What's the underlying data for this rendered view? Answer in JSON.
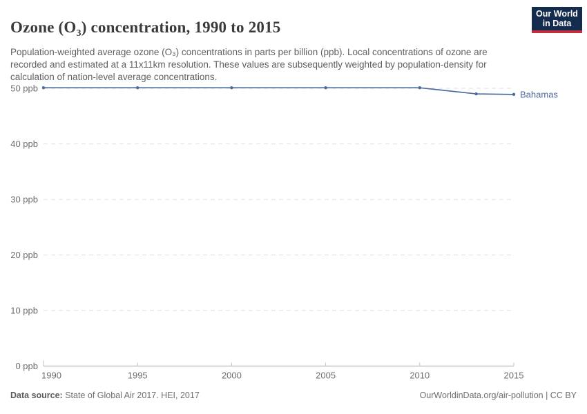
{
  "header": {
    "title": {
      "pre": "Ozone (O",
      "sub": "3",
      "post": ") concentration, 1990 to 2015"
    },
    "subtitle": "Population-weighted average ozone (O₃) concentrations in parts per billion (ppb). Local concentrations of ozone are recorded and estimated at a 11x11km resolution. These values are subsequently weighted by population-density for calculation of nation-level average concentrations.",
    "logo": {
      "line1": "Our World",
      "line2": "in Data",
      "bg": "#132c4e",
      "accent": "#c0303e"
    }
  },
  "chart_data": {
    "type": "line",
    "title": "Ozone (O₃) concentration, 1990 to 2015",
    "xlabel": "",
    "ylabel": "",
    "x": {
      "range": [
        1990,
        2015
      ],
      "ticks": [
        1990,
        1995,
        2000,
        2005,
        2010,
        2015
      ]
    },
    "y": {
      "range": [
        0,
        50
      ],
      "ticks": [
        0,
        10,
        20,
        30,
        40,
        50
      ],
      "tick_labels": [
        "0 ppb",
        "10 ppb",
        "20 ppb",
        "30 ppb",
        "40 ppb",
        "50 ppb"
      ]
    },
    "grid": "horizontal-dashed",
    "legend_position": "end-of-line-label",
    "grid_color": "#dedede",
    "axis_color": "#a3a3a3",
    "tick_color": "#c2c2c2",
    "tick_label_color": "#6e6e6e",
    "series": [
      {
        "name": "Bahamas",
        "color": "#4c6a9c",
        "points": [
          {
            "x": 1990,
            "y": 50.1
          },
          {
            "x": 1995,
            "y": 50.1
          },
          {
            "x": 2000,
            "y": 50.1
          },
          {
            "x": 2005,
            "y": 50.1
          },
          {
            "x": 2010,
            "y": 50.1
          },
          {
            "x": 2013,
            "y": 49.0
          },
          {
            "x": 2015,
            "y": 48.9
          }
        ]
      }
    ]
  },
  "footer": {
    "source_label": "Data source:",
    "source_text": " State of Global Air 2017. HEI, 2017",
    "right_text": "OurWorldinData.org/air-pollution | CC BY"
  }
}
